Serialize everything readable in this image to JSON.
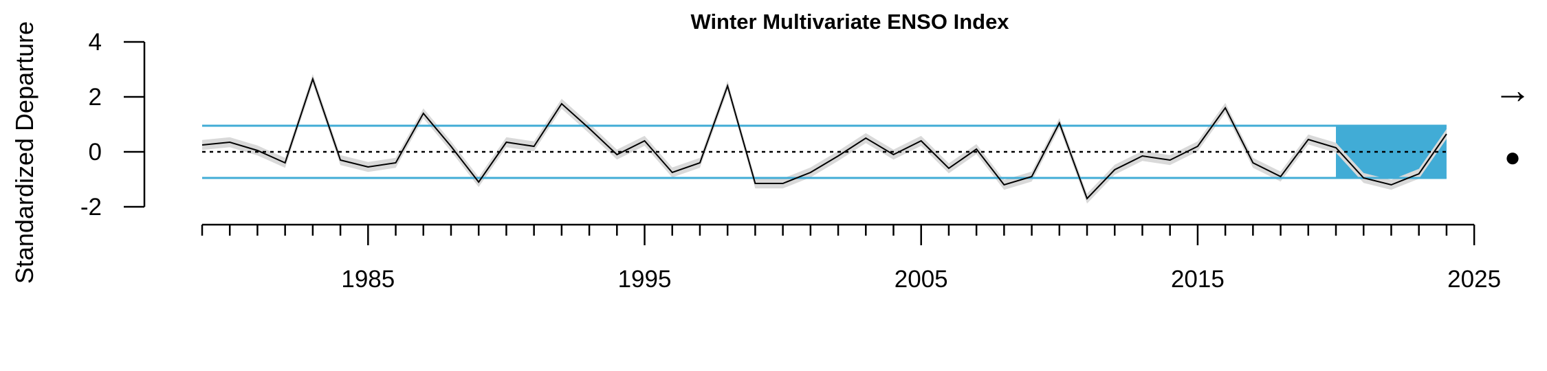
{
  "chart_data": {
    "type": "line",
    "title": "Winter Multivariate ENSO Index",
    "ylabel": "Standardized Departure",
    "xlabel": "",
    "xlim": [
      1979,
      2025
    ],
    "ylim": [
      -2,
      4
    ],
    "y_ticks": [
      "-2",
      "0",
      "2",
      "4"
    ],
    "x_ticks": [
      "1985",
      "1995",
      "2005",
      "2015",
      "2025"
    ],
    "x_tick_values": [
      1985,
      1995,
      2005,
      2015,
      2025
    ],
    "grid": false,
    "reference_lines": {
      "mean": 0,
      "upper_sd": 0.95,
      "lower_sd": -0.95
    },
    "shaded_recent_period": [
      2020,
      2024
    ],
    "trend_symbol": "→",
    "status_symbol": "●",
    "x": [
      1979,
      1980,
      1981,
      1982,
      1983,
      1984,
      1985,
      1986,
      1987,
      1988,
      1989,
      1990,
      1991,
      1992,
      1993,
      1994,
      1995,
      1996,
      1997,
      1998,
      1999,
      2000,
      2001,
      2002,
      2003,
      2004,
      2005,
      2006,
      2007,
      2008,
      2009,
      2010,
      2011,
      2012,
      2013,
      2014,
      2015,
      2016,
      2017,
      2018,
      2019,
      2020,
      2021,
      2022,
      2023,
      2024
    ],
    "series": [
      {
        "values": [
          0.25,
          0.35,
          0.05,
          -0.4,
          2.65,
          -0.3,
          -0.55,
          -0.4,
          1.4,
          0.2,
          -1.1,
          0.35,
          0.2,
          1.75,
          0.85,
          -0.1,
          0.4,
          -0.75,
          -0.4,
          2.4,
          -1.15,
          -1.15,
          -0.75,
          -0.15,
          0.5,
          -0.1,
          0.4,
          -0.6,
          0.1,
          -1.2,
          -0.9,
          1.05,
          -1.7,
          -0.65,
          -0.15,
          -0.3,
          0.2,
          1.6,
          -0.4,
          -0.9,
          0.45,
          0.15,
          -0.95,
          -1.2,
          -0.8,
          0.65
        ]
      }
    ],
    "colors": {
      "line": "#000000",
      "uncertainty": "#d9d9d9",
      "sd_lines": "#41acd6",
      "recent_shade": "#41acd6",
      "axis": "#000000"
    }
  }
}
